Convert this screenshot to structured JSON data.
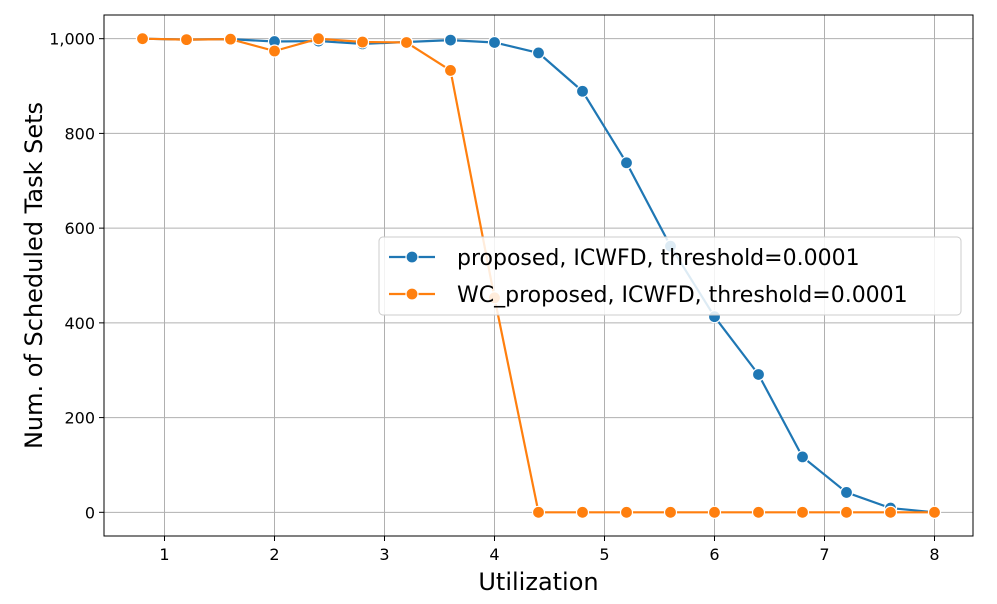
{
  "chart_data": {
    "type": "line",
    "xlabel": "Utilization",
    "ylabel": "Num. of Scheduled Task Sets",
    "xlim": [
      0.45,
      8.35
    ],
    "ylim": [
      -50,
      1050
    ],
    "xticks": [
      1,
      2,
      3,
      4,
      5,
      6,
      7,
      8
    ],
    "xtick_labels": [
      "1",
      "2",
      "3",
      "4",
      "5",
      "6",
      "7",
      "8"
    ],
    "yticks": [
      0,
      200,
      400,
      600,
      800,
      1000
    ],
    "ytick_labels": [
      "0",
      "200",
      "400",
      "600",
      "800",
      "1,000"
    ],
    "grid": true,
    "legend_position": "center-right",
    "x": [
      0.8,
      1.2,
      1.6,
      2.0,
      2.4,
      2.8,
      3.2,
      3.6,
      4.0,
      4.4,
      4.8,
      5.2,
      5.6,
      6.0,
      6.4,
      6.8,
      7.2,
      7.6,
      8.0
    ],
    "series": [
      {
        "name": "proposed, ICWFD, threshold=0.0001",
        "color": "#1f77b4",
        "marker": "circle",
        "values": [
          1000,
          998,
          999,
          994,
          995,
          989,
          993,
          997,
          992,
          970,
          889,
          738,
          562,
          413,
          291,
          117,
          42,
          9,
          0
        ]
      },
      {
        "name": "WC_proposed, ICWFD, threshold=0.0001",
        "color": "#ff7f0e",
        "marker": "circle",
        "values": [
          1000,
          998,
          999,
          974,
          1000,
          993,
          992,
          933,
          453,
          0,
          0,
          0,
          0,
          0,
          0,
          0,
          0,
          0,
          0
        ]
      }
    ]
  }
}
